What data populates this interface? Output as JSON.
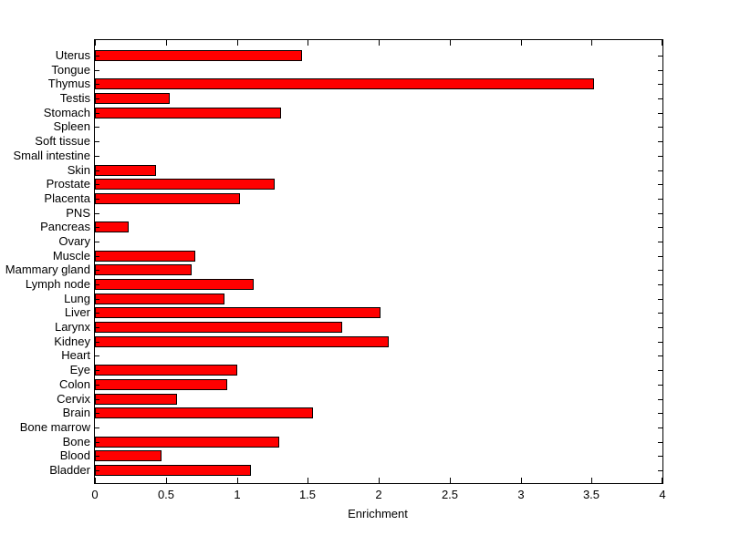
{
  "chart_data": {
    "type": "bar",
    "orientation": "horizontal",
    "title": "",
    "xlabel": "Enrichment",
    "ylabel": "",
    "xlim": [
      0,
      4
    ],
    "xticks": [
      0,
      0.5,
      1,
      1.5,
      2,
      2.5,
      3,
      3.5,
      4
    ],
    "xtick_labels": [
      "0",
      "0.5",
      "1",
      "1.5",
      "2",
      "2.5",
      "3",
      "3.5",
      "4"
    ],
    "grid": false,
    "legend": null,
    "bar_color": "#ff0000",
    "bar_edge_color": "#000000",
    "categories": [
      "Uterus",
      "Tongue",
      "Thymus",
      "Testis",
      "Stomach",
      "Spleen",
      "Soft tissue",
      "Small intestine",
      "Skin",
      "Prostate",
      "Placenta",
      "PNS",
      "Pancreas",
      "Ovary",
      "Muscle",
      "Mammary gland",
      "Lymph node",
      "Lung",
      "Liver",
      "Larynx",
      "Kidney",
      "Heart",
      "Eye",
      "Colon",
      "Cervix",
      "Brain",
      "Bone marrow",
      "Bone",
      "Blood",
      "Bladder"
    ],
    "values": [
      1.46,
      0,
      3.52,
      0.53,
      1.31,
      0,
      0,
      0,
      0.43,
      1.27,
      1.02,
      0,
      0.24,
      0,
      0.71,
      0.68,
      1.12,
      0.91,
      2.01,
      1.74,
      2.07,
      0,
      1.0,
      0.93,
      0.58,
      1.54,
      0,
      1.3,
      0.47,
      1.1
    ]
  }
}
